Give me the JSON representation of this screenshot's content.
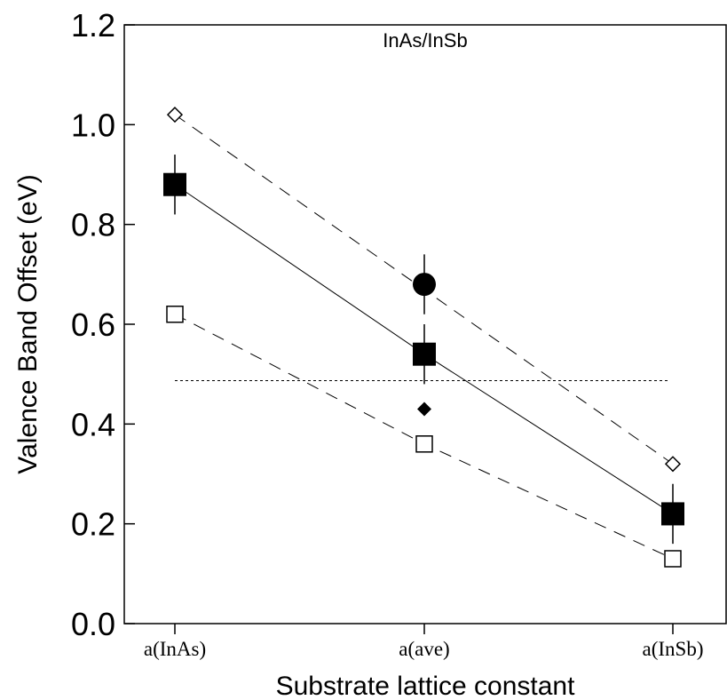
{
  "chart_data": {
    "type": "line",
    "title": "InAs/InSb",
    "xlabel": "Substrate lattice constant",
    "ylabel": "Valence Band Offset (eV)",
    "categories": [
      "a(InAs)",
      "a(ave)",
      "a(InSb)"
    ],
    "ylim": [
      0.0,
      1.2
    ],
    "yticks": [
      "0.0",
      "0.2",
      "0.4",
      "0.6",
      "0.8",
      "1.0",
      "1.2"
    ],
    "grid": false,
    "series": [
      {
        "marker": "filled-square",
        "line": "solid",
        "values": [
          0.88,
          0.54,
          0.22
        ],
        "error": [
          0.06,
          0.06,
          0.06
        ]
      },
      {
        "marker": "open-diamond",
        "line": "dashed",
        "values": [
          1.02,
          null,
          0.32
        ]
      },
      {
        "marker": "open-square",
        "line": "dashed",
        "values": [
          0.62,
          0.36,
          0.13
        ]
      },
      {
        "marker": "filled-circle",
        "line": "none",
        "values": [
          null,
          0.68,
          null
        ],
        "error": [
          null,
          0.06,
          null
        ]
      },
      {
        "marker": "filled-diamond",
        "line": "none",
        "values": [
          null,
          0.43,
          null
        ]
      }
    ],
    "reference_line": {
      "y": 0.487,
      "style": "dotted"
    }
  }
}
